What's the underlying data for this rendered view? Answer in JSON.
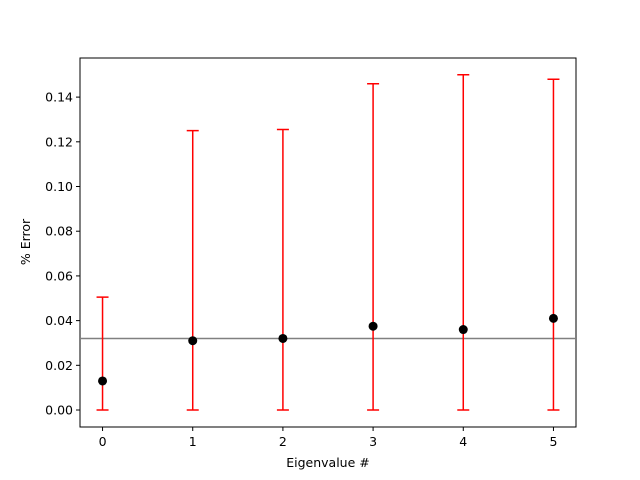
{
  "chart_data": {
    "type": "errorbar",
    "x": [
      0,
      1,
      2,
      3,
      4,
      5
    ],
    "xlabel": "Eigenvalue #",
    "ylabel": "% Error",
    "series": [
      {
        "values": [
          0.013,
          0.031,
          0.032,
          0.0375,
          0.036,
          0.041
        ],
        "err_low": [
          0.013,
          0.031,
          0.032,
          0.0375,
          0.036,
          0.041
        ],
        "err_high": [
          0.0375,
          0.094,
          0.0935,
          0.1085,
          0.114,
          0.107
        ],
        "color": "#000000",
        "error_color": "#ff0000"
      }
    ],
    "hline": {
      "value": 0.032,
      "color": "#808080"
    },
    "xlim": [
      -0.25,
      5.25
    ],
    "ylim": [
      -0.0076,
      0.1575
    ],
    "xticks": [
      0,
      1,
      2,
      3,
      4,
      5
    ],
    "yticks": [
      {
        "value": 0,
        "label": "0.00"
      },
      {
        "value": 0.02,
        "label": "0.02"
      },
      {
        "value": 0.04,
        "label": "0.04"
      },
      {
        "value": 0.06,
        "label": "0.06"
      },
      {
        "value": 0.08,
        "label": "0.08"
      },
      {
        "value": 0.1,
        "label": "0.10"
      },
      {
        "value": 0.12,
        "label": "0.12"
      },
      {
        "value": 0.14,
        "label": "0.14"
      }
    ]
  }
}
